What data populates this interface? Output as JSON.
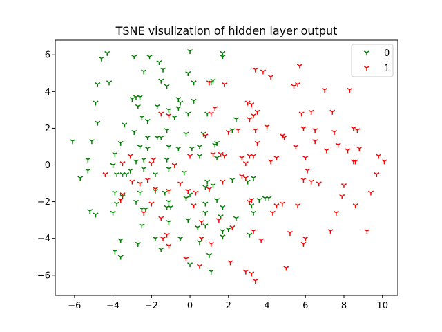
{
  "chart_data": {
    "type": "scatter",
    "title": "TSNE visulization of hidden layer output",
    "xlabel": "",
    "ylabel": "",
    "xlim": [
      -7,
      10.8
    ],
    "ylim": [
      -7.1,
      6.8
    ],
    "xticks": [
      -6,
      -4,
      -2,
      0,
      2,
      4,
      6,
      8,
      10
    ],
    "yticks": [
      -6,
      -4,
      -2,
      0,
      2,
      4,
      6
    ],
    "grid": false,
    "legend": "top-right",
    "marker": "tri_down",
    "series": [
      {
        "name": "0",
        "color": "#008000",
        "points": [
          [
            -4.3,
            6.1
          ],
          [
            -4.6,
            5.8
          ],
          [
            -2.9,
            5.9
          ],
          [
            -2.1,
            5.9
          ],
          [
            -1.6,
            5.6
          ],
          [
            -1.4,
            5.2
          ],
          [
            -2.4,
            5.1
          ],
          [
            0,
            6.2
          ],
          [
            1.7,
            6.1
          ],
          [
            1.7,
            5.9
          ],
          [
            -0.1,
            5.0
          ],
          [
            0.2,
            4.5
          ],
          [
            -1.2,
            4.3
          ],
          [
            -1.5,
            4.6
          ],
          [
            -4.2,
            4.5
          ],
          [
            -4.8,
            4.4
          ],
          [
            1.2,
            4.6
          ],
          [
            1.1,
            4.5
          ],
          [
            -2.8,
            3.7
          ],
          [
            -2.6,
            3.7
          ],
          [
            -3.0,
            3.6
          ],
          [
            -1.7,
            3.2
          ],
          [
            -0.6,
            3.6
          ],
          [
            -0.6,
            3.1
          ],
          [
            -0.5,
            3.4
          ],
          [
            0.2,
            3.5
          ],
          [
            -4.9,
            3.4
          ],
          [
            -2.7,
            3.2
          ],
          [
            -2.5,
            2.6
          ],
          [
            -2.2,
            2.4
          ],
          [
            -1.1,
            3.0
          ],
          [
            -0.8,
            2.6
          ],
          [
            -0.1,
            2.8
          ],
          [
            0.9,
            2.8
          ],
          [
            2.4,
            2.5
          ],
          [
            -3.4,
            2.2
          ],
          [
            -4.8,
            2.3
          ],
          [
            -2.9,
            1.8
          ],
          [
            -1.2,
            1.9
          ],
          [
            -0.2,
            1.7
          ],
          [
            0.7,
            1.7
          ],
          [
            1.4,
            1.2
          ],
          [
            2.2,
            1.9
          ],
          [
            -3.6,
            1.2
          ],
          [
            -2.2,
            1.5
          ],
          [
            -1.7,
            1.5
          ],
          [
            -1.5,
            1.5
          ],
          [
            -5.1,
            1.3
          ],
          [
            -6.1,
            1.3
          ],
          [
            -3.9,
            0.6
          ],
          [
            -2.6,
            1.0
          ],
          [
            -2.2,
            0.9
          ],
          [
            -1.1,
            1.0
          ],
          [
            -0.6,
            0.9
          ],
          [
            0.1,
            0.9
          ],
          [
            0.5,
            1.0
          ],
          [
            1.3,
            1.1
          ],
          [
            -5.3,
            0.3
          ],
          [
            -4.0,
            0.0
          ],
          [
            -2.8,
            0.2
          ],
          [
            -2.4,
            0.3
          ],
          [
            -1.2,
            0.3
          ],
          [
            -0.8,
            0.0
          ],
          [
            0.5,
            0.5
          ],
          [
            1.4,
            0.4
          ],
          [
            -5.3,
            -0.3
          ],
          [
            -3.8,
            -0.5
          ],
          [
            -3.5,
            -0.5
          ],
          [
            -3.3,
            -0.5
          ],
          [
            -3.1,
            -0.3
          ],
          [
            -2.4,
            -0.2
          ],
          [
            -1.8,
            -0.5
          ],
          [
            -1.1,
            -0.2
          ],
          [
            -0.3,
            -0.4
          ],
          [
            0.9,
            -0.9
          ],
          [
            1.2,
            -1.1
          ],
          [
            2.2,
            -0.8
          ],
          [
            3.0,
            -0.9
          ],
          [
            3.3,
            -0.7
          ],
          [
            -5.7,
            -0.7
          ],
          [
            -3.9,
            -1.5
          ],
          [
            -3.5,
            -1.7
          ],
          [
            -2.6,
            -1.5
          ],
          [
            -1.8,
            -1.4
          ],
          [
            -1.3,
            -1.5
          ],
          [
            0,
            -1.6
          ],
          [
            0.8,
            -1.2
          ],
          [
            1.4,
            -1.9
          ],
          [
            3.6,
            -1.9
          ],
          [
            3.9,
            -1.8
          ],
          [
            4.1,
            -1.8
          ],
          [
            -3.8,
            -2.1
          ],
          [
            -2.8,
            -2.0
          ],
          [
            -2.5,
            -2.4
          ],
          [
            -2.3,
            -2.4
          ],
          [
            -1.2,
            -2.3
          ],
          [
            -1.0,
            -2.3
          ],
          [
            -0.2,
            -1.8
          ],
          [
            0.8,
            -2.1
          ],
          [
            1.7,
            -2.3
          ],
          [
            3.2,
            -2.2
          ],
          [
            -5.2,
            -2.5
          ],
          [
            -4.9,
            -2.7
          ],
          [
            -4.0,
            -2.6
          ],
          [
            -1.1,
            -2.0
          ],
          [
            0.8,
            -2.6
          ],
          [
            1.6,
            -2.8
          ],
          [
            2.4,
            -2.9
          ],
          [
            3.3,
            -2.6
          ],
          [
            -2.5,
            -3.3
          ],
          [
            -1.1,
            -3.1
          ],
          [
            -0.1,
            -3.0
          ],
          [
            0.4,
            -3.4
          ],
          [
            0.8,
            -3.3
          ],
          [
            1.7,
            -3.6
          ],
          [
            2.0,
            -3.5
          ],
          [
            -3.6,
            -4.1
          ],
          [
            -2.7,
            -4.3
          ],
          [
            -1.8,
            -4.0
          ],
          [
            -1.5,
            -4.6
          ],
          [
            -0.5,
            -4.0
          ],
          [
            0.5,
            -4.2
          ],
          [
            1.7,
            -3.9
          ],
          [
            3.1,
            -3.8
          ],
          [
            -3.9,
            -4.7
          ],
          [
            -3.6,
            -5.0
          ],
          [
            0,
            -5.4
          ],
          [
            1.0,
            -4.9
          ],
          [
            1.1,
            -5.8
          ]
        ]
      },
      {
        "name": "1",
        "color": "#ff0000",
        "points": [
          [
            3.4,
            5.2
          ],
          [
            3.8,
            5.1
          ],
          [
            4.2,
            4.8
          ],
          [
            5.7,
            5.4
          ],
          [
            1.0,
            4.5
          ],
          [
            1.8,
            4.4
          ],
          [
            5.4,
            4.3
          ],
          [
            5.6,
            4.4
          ],
          [
            7.0,
            4.1
          ],
          [
            8.3,
            4.1
          ],
          [
            3.0,
            3.4
          ],
          [
            3.2,
            3.3
          ],
          [
            3.5,
            2.9
          ],
          [
            3.3,
            2.7
          ],
          [
            3.1,
            2.5
          ],
          [
            4.0,
            2.1
          ],
          [
            3.4,
            1.9
          ],
          [
            4.9,
            1.5
          ],
          [
            5.8,
            2.8
          ],
          [
            6.3,
            2.9
          ],
          [
            7.4,
            2.9
          ],
          [
            5.9,
            2.0
          ],
          [
            6.5,
            1.9
          ],
          [
            7.5,
            1.8
          ],
          [
            8.5,
            2.0
          ],
          [
            8.7,
            1.9
          ],
          [
            -1.5,
            2.8
          ],
          [
            -1.1,
            2.7
          ],
          [
            1.1,
            2.8
          ],
          [
            1.3,
            3.1
          ],
          [
            0.8,
            1.6
          ],
          [
            2.0,
            1.8
          ],
          [
            2.5,
            1.9
          ],
          [
            3.5,
            1.2
          ],
          [
            4.8,
            1.6
          ],
          [
            5.5,
            1.0
          ],
          [
            6.5,
            1.3
          ],
          [
            7.7,
            1.1
          ],
          [
            8.2,
            0.8
          ],
          [
            8.8,
            0.9
          ],
          [
            7.1,
            0.8
          ],
          [
            9.8,
            0.5
          ],
          [
            10.1,
            0.2
          ],
          [
            8.5,
            0.2
          ],
          [
            8.6,
            0.2
          ],
          [
            6.1,
            -0.3
          ],
          [
            6.0,
            0.4
          ],
          [
            4.5,
            0.4
          ],
          [
            4.2,
            0.2
          ],
          [
            3.1,
            0.5
          ],
          [
            3.3,
            0.5
          ],
          [
            2.7,
            0.4
          ],
          [
            2.9,
            0.1
          ],
          [
            1.8,
            0.5
          ],
          [
            1.6,
            0.6
          ],
          [
            1.2,
            0.6
          ],
          [
            0.0,
            0.5
          ],
          [
            -0.8,
            0.0
          ],
          [
            -1.9,
            0.3
          ],
          [
            -2.0,
            0.1
          ],
          [
            -3.1,
            0.5
          ],
          [
            -3.5,
            0.1
          ],
          [
            -4.4,
            -0.5
          ],
          [
            -2.6,
            -1.0
          ],
          [
            -3.0,
            -0.9
          ],
          [
            -2.2,
            -0.8
          ],
          [
            -1.8,
            -1.3
          ],
          [
            -1.1,
            -1.4
          ],
          [
            -0.5,
            -1.0
          ],
          [
            -0.1,
            -1.4
          ],
          [
            0.3,
            -1.5
          ],
          [
            1.0,
            -1.3
          ],
          [
            1.7,
            -0.9
          ],
          [
            2.7,
            -0.6
          ],
          [
            2.9,
            -0.7
          ],
          [
            5.9,
            -0.8
          ],
          [
            6.3,
            -0.9
          ],
          [
            6.7,
            -1.0
          ],
          [
            8.0,
            -1.1
          ],
          [
            9.7,
            -0.5
          ],
          [
            9.4,
            -1.5
          ],
          [
            7.9,
            -1.7
          ],
          [
            8.6,
            -2.2
          ],
          [
            7.6,
            -2.6
          ],
          [
            4.8,
            -2.1
          ],
          [
            4.5,
            -2.2
          ],
          [
            5.6,
            -2.2
          ],
          [
            4.3,
            -2.6
          ],
          [
            3.1,
            -2.0
          ],
          [
            3.2,
            -1.9
          ],
          [
            3.3,
            -3.6
          ],
          [
            -3.6,
            -1.9
          ],
          [
            -3.5,
            -1.6
          ],
          [
            -2.0,
            -2.1
          ],
          [
            -1.5,
            -2.9
          ],
          [
            -1.2,
            -3.8
          ],
          [
            -1.4,
            -4.0
          ],
          [
            -1.1,
            -4.4
          ],
          [
            -2.4,
            -2.6
          ],
          [
            0.2,
            -2.2
          ],
          [
            0.6,
            -3.1
          ],
          [
            0.6,
            -4.0
          ],
          [
            1.1,
            -4.3
          ],
          [
            1.5,
            -3.0
          ],
          [
            2.2,
            -3.4
          ],
          [
            3.7,
            -4.1
          ],
          [
            5.2,
            -3.7
          ],
          [
            6.0,
            -4.0
          ],
          [
            5.9,
            -4.3
          ],
          [
            7.3,
            -3.6
          ],
          [
            9.2,
            -3.6
          ],
          [
            -0.2,
            -5.1
          ],
          [
            0.5,
            -5.5
          ],
          [
            2.1,
            -5.3
          ],
          [
            2.9,
            -5.8
          ],
          [
            3.2,
            -5.9
          ],
          [
            3.4,
            -6.3
          ],
          [
            5.0,
            -5.6
          ]
        ]
      }
    ]
  }
}
